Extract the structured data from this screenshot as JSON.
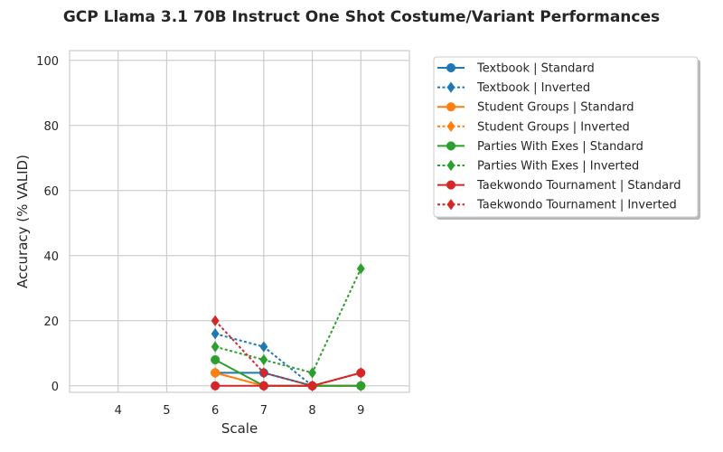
{
  "chart_data": {
    "type": "line",
    "title": "GCP Llama 3.1 70B Instruct One Shot Costume/Variant Performances",
    "xlabel": "Scale",
    "ylabel": "Accuracy (% VALID)",
    "xlim": [
      3,
      10
    ],
    "ylim": [
      -2,
      103
    ],
    "xticks": [
      4,
      5,
      6,
      7,
      8,
      9
    ],
    "yticks": [
      0,
      20,
      40,
      60,
      80,
      100
    ],
    "grid": true,
    "legend_position": "outside-right",
    "x": [
      6,
      7,
      8,
      9
    ],
    "series": [
      {
        "name": "Textbook | Standard",
        "color": "#1f77b4",
        "style": "solid",
        "marker": "circle",
        "values": [
          4,
          4,
          0,
          0
        ]
      },
      {
        "name": "Textbook | Inverted",
        "color": "#1f77b4",
        "style": "dashed",
        "marker": "diamond",
        "values": [
          16,
          12,
          0,
          0
        ]
      },
      {
        "name": "Student Groups | Standard",
        "color": "#ff7f0e",
        "style": "solid",
        "marker": "circle",
        "values": [
          4,
          0,
          0,
          0
        ]
      },
      {
        "name": "Student Groups | Inverted",
        "color": "#ff7f0e",
        "style": "dashed",
        "marker": "diamond",
        "values": [
          4,
          0,
          0,
          0
        ]
      },
      {
        "name": "Parties With Exes | Standard",
        "color": "#2ca02c",
        "style": "solid",
        "marker": "circle",
        "values": [
          8,
          0,
          0,
          0
        ]
      },
      {
        "name": "Parties With Exes | Inverted",
        "color": "#2ca02c",
        "style": "dashed",
        "marker": "diamond",
        "values": [
          12,
          8,
          4,
          36
        ]
      },
      {
        "name": "Taekwondo Tournament | Standard",
        "color": "#d62728",
        "style": "solid",
        "marker": "circle",
        "values": [
          0,
          0,
          0,
          4
        ]
      },
      {
        "name": "Taekwondo Tournament | Inverted",
        "color": "#d62728",
        "style": "dashed",
        "marker": "diamond",
        "values": [
          20,
          4,
          0,
          4
        ]
      }
    ]
  }
}
